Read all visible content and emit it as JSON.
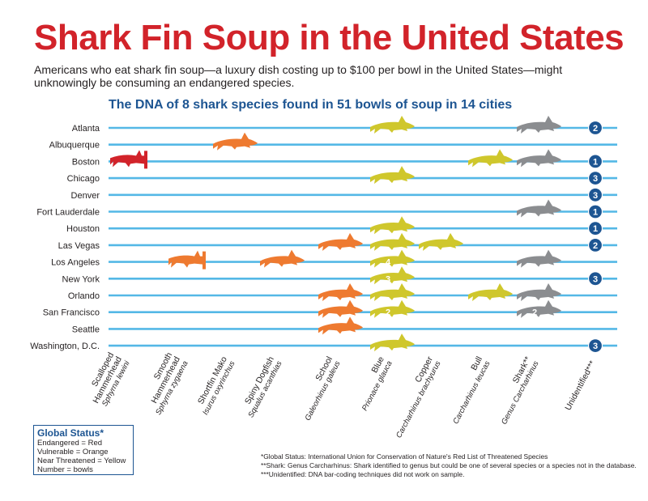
{
  "title": "Shark Fin Soup in the United States",
  "subtitle": "Americans who eat shark fin soup—a luxury dish costing up to $100 per bowl in the United States—might unknowingly be consuming an endangered species.",
  "subhead": "The DNA of 8 shark species found in 51 bowls of soup in 14 cities",
  "colors": {
    "title_red": "#d2232a",
    "blue": "#1d5592",
    "line_blue": "#54b8e6",
    "endangered": "#d2232a",
    "vulnerable": "#ee7a30",
    "near_threatened": "#cfc72c",
    "unknown": "#8b8d90",
    "badge": "#1d5592"
  },
  "legend": {
    "title": "Global Status*",
    "lines": [
      "Endangered = Red",
      "Vulnerable = Orange",
      "Near Threatened = Yellow",
      "Number = bowls"
    ]
  },
  "footnotes": [
    "*Global Status: International Union for Conservation of Nature's Red List of Threatened Species",
    "**Shark: Genus Carcharhinus: Shark identified to genus but could be one of several species or a species not in the database.",
    "***Unidentified: DNA bar-coding techniques did not work on sample."
  ],
  "chart_data": {
    "type": "table",
    "cities": [
      "Atlanta",
      "Albuquerque",
      "Boston",
      "Chicago",
      "Denver",
      "Fort Lauderdale",
      "Houston",
      "Las Vegas",
      "Los Angeles",
      "New York",
      "Orlando",
      "San Francisco",
      "Seattle",
      "Washington, D.C."
    ],
    "species": [
      {
        "common": [
          "Scalloped",
          "Hammerhead"
        ],
        "latin": "Sphyrna lewini",
        "status": "endangered",
        "shape": "hammerhead"
      },
      {
        "common": [
          "Smooth",
          "Hammerhead"
        ],
        "latin": "Sphyrna zygaena",
        "status": "vulnerable",
        "shape": "hammerhead"
      },
      {
        "common": [
          "Shortfin Mako"
        ],
        "latin": "Isurus oxyrinchus",
        "status": "vulnerable",
        "shape": "shark"
      },
      {
        "common": [
          "Spiny Dogfish"
        ],
        "latin": "Squalus acanthias",
        "status": "vulnerable",
        "shape": "shark"
      },
      {
        "common": [
          "School"
        ],
        "latin": "Galeorhinus galeus",
        "status": "vulnerable",
        "shape": "shark"
      },
      {
        "common": [
          "Blue"
        ],
        "latin": "Prionace glauca",
        "status": "near_threatened",
        "shape": "shark"
      },
      {
        "common": [
          "Copper"
        ],
        "latin": "Carcharhinus brachyurus",
        "status": "near_threatened",
        "shape": "shark"
      },
      {
        "common": [
          "Bull"
        ],
        "latin": "Carcharhinus leucas",
        "status": "near_threatened",
        "shape": "shark"
      },
      {
        "common": [
          "Shark**"
        ],
        "latin": "Genus Carcharhinus",
        "status": "unknown",
        "shape": "shark"
      },
      {
        "common": [
          "Unidentified***"
        ],
        "latin": "",
        "status": "none",
        "shape": "badge"
      }
    ],
    "bowls": [
      [
        0,
        0,
        0,
        0,
        0,
        1,
        0,
        0,
        1,
        2
      ],
      [
        0,
        0,
        1,
        0,
        0,
        0,
        0,
        0,
        0,
        0
      ],
      [
        1,
        0,
        0,
        0,
        0,
        0,
        0,
        1,
        1,
        1
      ],
      [
        0,
        0,
        0,
        0,
        0,
        1,
        0,
        0,
        0,
        3
      ],
      [
        0,
        0,
        0,
        0,
        0,
        0,
        0,
        0,
        0,
        3
      ],
      [
        0,
        0,
        0,
        0,
        0,
        0,
        0,
        0,
        1,
        1
      ],
      [
        0,
        0,
        0,
        0,
        0,
        1,
        0,
        0,
        0,
        1
      ],
      [
        0,
        0,
        0,
        0,
        1,
        1,
        1,
        0,
        0,
        2
      ],
      [
        0,
        1,
        0,
        1,
        0,
        4,
        0,
        0,
        1,
        0
      ],
      [
        0,
        0,
        0,
        0,
        0,
        3,
        0,
        0,
        0,
        3
      ],
      [
        0,
        0,
        0,
        0,
        1,
        1,
        0,
        1,
        1,
        0
      ],
      [
        0,
        0,
        0,
        0,
        1,
        2,
        0,
        0,
        2,
        0
      ],
      [
        0,
        0,
        0,
        0,
        1,
        0,
        0,
        0,
        0,
        0
      ],
      [
        0,
        0,
        0,
        0,
        0,
        1,
        0,
        0,
        0,
        3
      ]
    ]
  }
}
